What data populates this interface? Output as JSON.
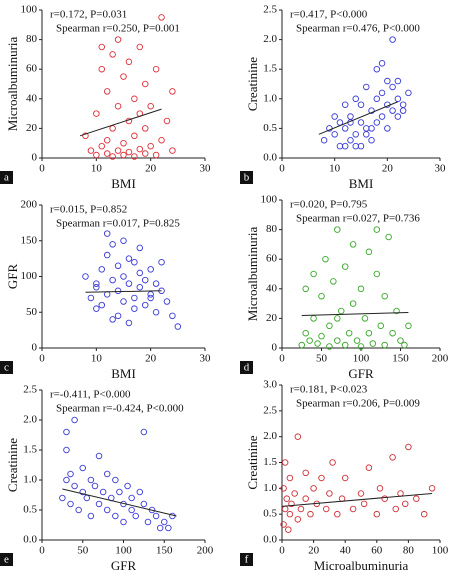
{
  "chart_data": [
    {
      "type": "scatter",
      "panel_label": "a",
      "x_label": "BMI",
      "y_label": "Microalbuminuria",
      "annotations": [
        "r=0.172, P=0.031",
        "Spearman r=0.250, P=0.001"
      ],
      "color": "#e0303a",
      "xlim": [
        0,
        30
      ],
      "xticks": [
        0,
        10,
        20,
        30
      ],
      "ylim": [
        0,
        100
      ],
      "yticks": [
        0,
        20,
        40,
        60,
        80,
        100
      ],
      "x": [
        8,
        9,
        10,
        10,
        11,
        11,
        12,
        12,
        12,
        13,
        13,
        13,
        14,
        14,
        14,
        15,
        15,
        15,
        16,
        16,
        16,
        17,
        17,
        17,
        18,
        18,
        18,
        19,
        19,
        19,
        20,
        20,
        21,
        21,
        22,
        22,
        23,
        24,
        24,
        11
      ],
      "values": [
        15,
        5,
        2,
        30,
        8,
        60,
        3,
        12,
        45,
        1,
        20,
        70,
        5,
        35,
        80,
        2,
        10,
        55,
        4,
        25,
        65,
        1,
        15,
        40,
        6,
        30,
        75,
        3,
        20,
        50,
        8,
        35,
        2,
        60,
        12,
        95,
        25,
        5,
        45,
        75
      ],
      "trendline": {
        "x": [
          7,
          22
        ],
        "y": [
          15,
          33
        ]
      }
    },
    {
      "type": "scatter",
      "panel_label": "b",
      "x_label": "BMI",
      "y_label": "Creatinine",
      "annotations": [
        "r=0.417, P<0.000",
        "Spearman r=0.476, P<0.000"
      ],
      "color": "#3a3ad8",
      "xlim": [
        0,
        30
      ],
      "xticks": [
        0,
        10,
        20,
        30
      ],
      "ylim": [
        0,
        2.5
      ],
      "yticks": [
        {
          "value": 0,
          "label": "0.0"
        },
        0.5,
        {
          "value": 1,
          "label": "1.0"
        },
        1.5,
        {
          "value": 2,
          "label": "2.0"
        },
        2.5
      ],
      "x": [
        8,
        9,
        10,
        10,
        11,
        11,
        12,
        12,
        13,
        13,
        14,
        14,
        15,
        15,
        15,
        16,
        16,
        17,
        17,
        18,
        18,
        18,
        19,
        19,
        20,
        20,
        20,
        21,
        21,
        22,
        22,
        23,
        24,
        12,
        14,
        16,
        19,
        21,
        13,
        17,
        23,
        22
      ],
      "values": [
        0.3,
        0.5,
        0.4,
        0.7,
        0.2,
        0.6,
        0.5,
        0.9,
        0.3,
        0.7,
        0.4,
        1.0,
        0.2,
        0.6,
        0.9,
        0.5,
        1.2,
        0.3,
        0.8,
        0.6,
        1.0,
        1.5,
        0.7,
        1.1,
        0.5,
        0.9,
        1.3,
        0.8,
        1.2,
        0.7,
        1.0,
        0.9,
        1.1,
        0.2,
        0.2,
        0.4,
        1.6,
        2.0,
        0.6,
        0.5,
        0.8,
        1.3
      ],
      "trendline": {
        "x": [
          7,
          22
        ],
        "y": [
          0.4,
          0.95
        ]
      }
    },
    {
      "type": "scatter",
      "panel_label": "c",
      "x_label": "BMI",
      "y_label": "GFR",
      "annotations": [
        "r=0.015, P=0.852",
        "Spearman r=0.017, P=0.825"
      ],
      "color": "#3a3ad8",
      "xlim": [
        0,
        30
      ],
      "xticks": [
        0,
        10,
        20,
        30
      ],
      "ylim": [
        0,
        200
      ],
      "yticks": [
        0,
        50,
        100,
        150,
        200
      ],
      "x": [
        8,
        9,
        10,
        10,
        11,
        11,
        12,
        12,
        13,
        13,
        13,
        14,
        14,
        15,
        15,
        15,
        16,
        16,
        17,
        17,
        17,
        18,
        18,
        19,
        19,
        20,
        20,
        21,
        21,
        22,
        22,
        23,
        24,
        25,
        12,
        14,
        16,
        18,
        20,
        10
      ],
      "values": [
        100,
        70,
        85,
        55,
        110,
        60,
        130,
        75,
        95,
        40,
        145,
        80,
        115,
        65,
        100,
        150,
        35,
        90,
        70,
        120,
        55,
        85,
        105,
        60,
        95,
        75,
        110,
        50,
        90,
        80,
        120,
        65,
        45,
        30,
        160,
        45,
        125,
        140,
        70,
        90
      ],
      "trendline": {
        "x": [
          8,
          22
        ],
        "y": [
          78,
          80
        ]
      }
    },
    {
      "type": "scatter",
      "panel_label": "d",
      "x_label": "GFR",
      "y_label": "Microalbuminuria",
      "annotations": [
        "r=0.020, P=0.795",
        "Spearman r=0.027, P=0.736"
      ],
      "color": "#3aa82a",
      "xlim": [
        0,
        200
      ],
      "xticks": [
        0,
        50,
        100,
        150,
        200
      ],
      "ylim": [
        0,
        100
      ],
      "yticks": [
        0,
        20,
        40,
        60,
        80,
        100
      ],
      "x": [
        25,
        30,
        35,
        40,
        40,
        45,
        50,
        50,
        55,
        60,
        60,
        65,
        70,
        70,
        75,
        80,
        80,
        85,
        90,
        90,
        95,
        100,
        100,
        105,
        110,
        110,
        115,
        120,
        120,
        125,
        130,
        130,
        135,
        140,
        145,
        150,
        155,
        160,
        30,
        70
      ],
      "values": [
        2,
        10,
        5,
        20,
        50,
        3,
        8,
        35,
        60,
        1,
        15,
        45,
        5,
        80,
        25,
        2,
        55,
        10,
        30,
        70,
        5,
        1,
        40,
        20,
        65,
        10,
        3,
        50,
        80,
        15,
        2,
        35,
        75,
        10,
        25,
        5,
        2,
        15,
        40,
        20
      ],
      "trendline": {
        "x": [
          25,
          160
        ],
        "y": [
          22,
          24
        ]
      }
    },
    {
      "type": "scatter",
      "panel_label": "e",
      "x_label": "GFR",
      "y_label": "Creatinine",
      "annotations": [
        "r=-0.411, P<0.000",
        "Spearman r=-0.424, P<0.000"
      ],
      "color": "#3a3ad8",
      "xlim": [
        0,
        200
      ],
      "xticks": [
        0,
        50,
        100,
        150,
        200
      ],
      "ylim": [
        0,
        2.5
      ],
      "yticks": [
        {
          "value": 0,
          "label": "0.0"
        },
        0.5,
        {
          "value": 1,
          "label": "1.0"
        },
        1.5,
        {
          "value": 2,
          "label": "2.0"
        },
        2.5
      ],
      "x": [
        25,
        30,
        30,
        35,
        40,
        40,
        45,
        50,
        50,
        55,
        60,
        60,
        65,
        70,
        70,
        75,
        80,
        80,
        85,
        90,
        90,
        95,
        100,
        100,
        105,
        110,
        110,
        115,
        120,
        125,
        130,
        135,
        140,
        145,
        150,
        155,
        160,
        30,
        35,
        125
      ],
      "values": [
        0.7,
        1.0,
        1.8,
        0.6,
        0.9,
        2.0,
        0.5,
        0.8,
        1.2,
        0.7,
        0.4,
        1.0,
        0.9,
        0.6,
        1.4,
        0.8,
        0.5,
        1.1,
        0.7,
        0.4,
        1.0,
        0.8,
        0.3,
        0.6,
        0.9,
        0.5,
        0.7,
        0.4,
        0.8,
        0.6,
        0.3,
        0.5,
        0.4,
        0.2,
        0.3,
        0.2,
        0.4,
        1.5,
        1.1,
        1.8
      ],
      "trendline": {
        "x": [
          25,
          165
        ],
        "y": [
          0.85,
          0.4
        ]
      }
    },
    {
      "type": "scatter",
      "panel_label": "f",
      "x_label": "Microalbuminuria",
      "y_label": "Creatinine",
      "annotations": [
        "r=0.181, P<0.023",
        "Spearman r=0.206, P=0.009"
      ],
      "color": "#d03038",
      "xlim": [
        0,
        100
      ],
      "xticks": [
        0,
        20,
        40,
        60,
        80,
        100
      ],
      "ylim": [
        0,
        3
      ],
      "yticks": [
        {
          "value": 0,
          "label": "0.0"
        },
        0.5,
        {
          "value": 1,
          "label": "1.0"
        },
        1.5,
        {
          "value": 2,
          "label": "2.0"
        },
        2.5,
        {
          "value": 3,
          "label": "3.0"
        }
      ],
      "x": [
        1,
        1,
        2,
        2,
        3,
        4,
        5,
        5,
        6,
        8,
        10,
        10,
        12,
        15,
        15,
        18,
        20,
        22,
        25,
        28,
        30,
        32,
        35,
        38,
        40,
        45,
        50,
        52,
        55,
        60,
        62,
        65,
        70,
        72,
        75,
        78,
        80,
        85,
        90,
        95
      ],
      "values": [
        0.3,
        1.0,
        0.6,
        1.5,
        0.8,
        0.2,
        0.5,
        1.2,
        0.7,
        0.9,
        0.4,
        2.0,
        0.6,
        0.8,
        1.3,
        0.5,
        1.0,
        0.7,
        1.2,
        0.6,
        0.9,
        1.5,
        0.5,
        0.8,
        1.2,
        0.6,
        0.9,
        0.7,
        1.4,
        0.5,
        1.0,
        0.8,
        1.6,
        0.6,
        0.9,
        0.7,
        1.8,
        0.8,
        0.5,
        1.0
      ],
      "trendline": {
        "x": [
          0,
          95
        ],
        "y": [
          0.65,
          0.9
        ]
      }
    }
  ]
}
